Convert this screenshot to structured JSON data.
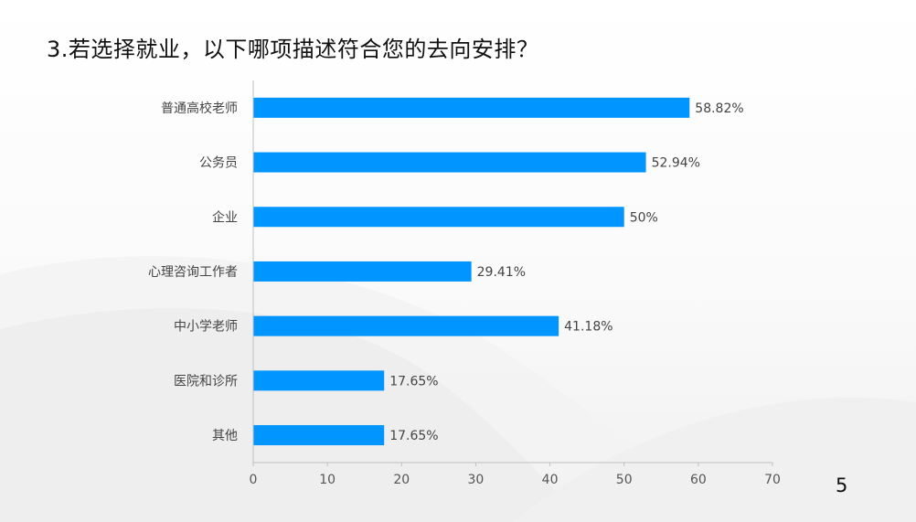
{
  "slide": {
    "title": "3.若选择就业，以下哪项描述符合您的去向安排？",
    "page_number": "5",
    "bar_color": "#0095FF"
  },
  "chart_data": {
    "type": "bar",
    "orientation": "horizontal",
    "title": "",
    "xlabel": "",
    "ylabel": "",
    "categories": [
      "普通高校老师",
      "公务员",
      "企业",
      "心理咨询工作者",
      "中小学老师",
      "医院和诊所",
      "其他"
    ],
    "values": [
      58.82,
      52.94,
      50,
      29.41,
      41.18,
      17.65,
      17.65
    ],
    "value_labels": [
      "58.82%",
      "52.94%",
      "50%",
      "29.41%",
      "41.18%",
      "17.65%",
      "17.65%"
    ],
    "xlim": [
      0,
      70
    ],
    "ticks": [
      "0",
      "10",
      "20",
      "30",
      "40",
      "50",
      "60",
      "70"
    ],
    "grid": false,
    "legend": "none"
  }
}
